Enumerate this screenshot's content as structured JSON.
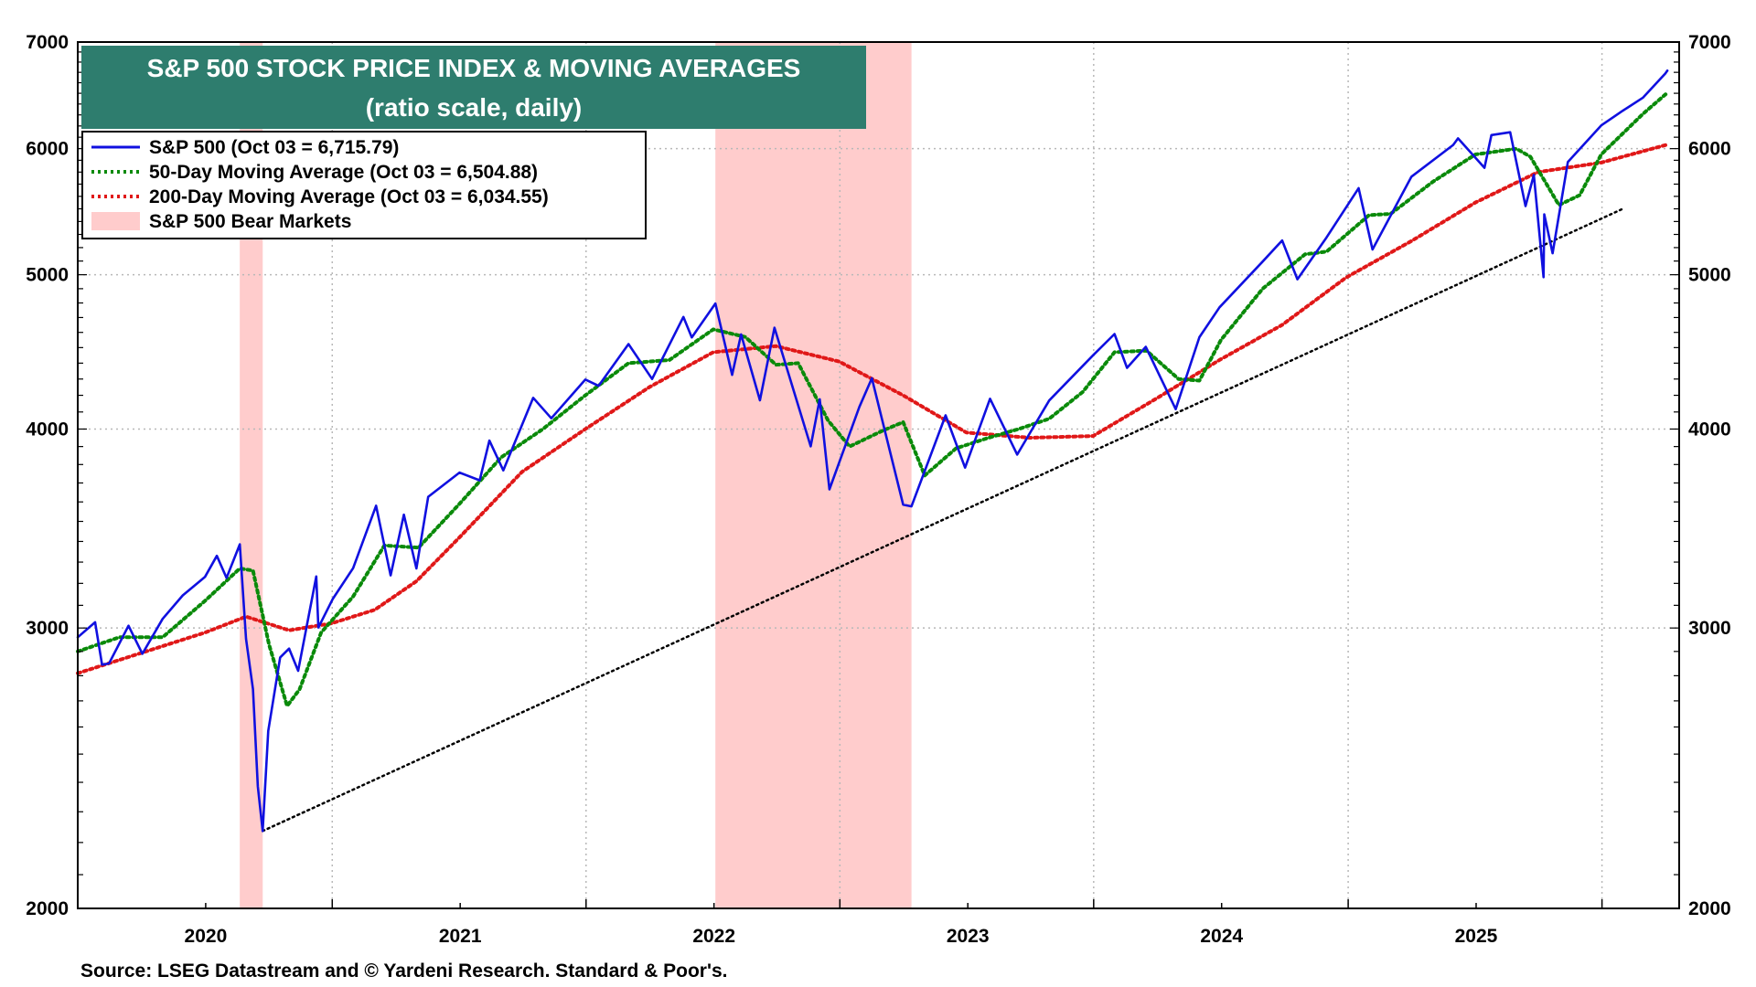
{
  "chart_data": {
    "type": "line",
    "title": "S&P 500 STOCK PRICE INDEX & MOVING AVERAGES",
    "subtitle": "(ratio scale, daily)",
    "y_scale": "log",
    "ylim": [
      2000,
      7000
    ],
    "x_range": [
      "2019-07-01",
      "2025-10-20"
    ],
    "y_ticks": [
      "2000",
      "3000",
      "4000",
      "5000",
      "6000",
      "7000"
    ],
    "y_tick_values": [
      2000,
      3000,
      4000,
      5000,
      6000,
      7000
    ],
    "x_tick_labels": [
      "2020",
      "2021",
      "2022",
      "2023",
      "2024",
      "2025"
    ],
    "x_label_positions": [
      "2020-01-01",
      "2021-01-01",
      "2022-01-01",
      "2023-01-01",
      "2024-01-01",
      "2025-01-01"
    ],
    "grid": true,
    "legend_placement": "top-left",
    "colors": {
      "sp500": "#1010e0",
      "ma50": "#0a8a0a",
      "ma200": "#e01818",
      "bear": "#ffcccc",
      "trend": "#000000",
      "title_bg": "#2e7d6e"
    },
    "series": [
      {
        "name": "S&P 500 (Oct 03 = 6,715.79)",
        "style": "solid",
        "points": [
          [
            "2019-07-01",
            2960
          ],
          [
            "2019-07-26",
            3025
          ],
          [
            "2019-08-05",
            2845
          ],
          [
            "2019-08-15",
            2850
          ],
          [
            "2019-09-12",
            3010
          ],
          [
            "2019-10-02",
            2890
          ],
          [
            "2019-10-31",
            3040
          ],
          [
            "2019-11-29",
            3145
          ],
          [
            "2019-12-31",
            3230
          ],
          [
            "2020-01-17",
            3330
          ],
          [
            "2020-01-31",
            3225
          ],
          [
            "2020-02-19",
            3386
          ],
          [
            "2020-02-28",
            2954
          ],
          [
            "2020-03-09",
            2746
          ],
          [
            "2020-03-16",
            2386
          ],
          [
            "2020-03-23",
            2237
          ],
          [
            "2020-03-31",
            2585
          ],
          [
            "2020-04-17",
            2875
          ],
          [
            "2020-04-30",
            2912
          ],
          [
            "2020-05-13",
            2820
          ],
          [
            "2020-06-08",
            3232
          ],
          [
            "2020-06-11",
            3002
          ],
          [
            "2020-07-02",
            3130
          ],
          [
            "2020-07-31",
            3271
          ],
          [
            "2020-09-02",
            3580
          ],
          [
            "2020-09-23",
            3237
          ],
          [
            "2020-10-12",
            3534
          ],
          [
            "2020-10-30",
            3270
          ],
          [
            "2020-11-16",
            3627
          ],
          [
            "2020-12-31",
            3756
          ],
          [
            "2021-01-29",
            3714
          ],
          [
            "2021-02-12",
            3934
          ],
          [
            "2021-03-04",
            3768
          ],
          [
            "2021-04-16",
            4185
          ],
          [
            "2021-05-12",
            4063
          ],
          [
            "2021-06-30",
            4297
          ],
          [
            "2021-07-19",
            4258
          ],
          [
            "2021-08-31",
            4523
          ],
          [
            "2021-10-04",
            4300
          ],
          [
            "2021-11-18",
            4704
          ],
          [
            "2021-11-30",
            4567
          ],
          [
            "2022-01-03",
            4796
          ],
          [
            "2022-01-27",
            4326
          ],
          [
            "2022-02-09",
            4587
          ],
          [
            "2022-03-08",
            4170
          ],
          [
            "2022-03-29",
            4631
          ],
          [
            "2022-05-20",
            3901
          ],
          [
            "2022-06-02",
            4176
          ],
          [
            "2022-06-16",
            3666
          ],
          [
            "2022-07-29",
            4130
          ],
          [
            "2022-08-16",
            4305
          ],
          [
            "2022-09-30",
            3586
          ],
          [
            "2022-10-12",
            3577
          ],
          [
            "2022-11-30",
            4080
          ],
          [
            "2022-12-28",
            3783
          ],
          [
            "2023-02-02",
            4179
          ],
          [
            "2023-03-13",
            3855
          ],
          [
            "2023-04-28",
            4169
          ],
          [
            "2023-06-30",
            4450
          ],
          [
            "2023-07-31",
            4589
          ],
          [
            "2023-08-18",
            4370
          ],
          [
            "2023-09-14",
            4505
          ],
          [
            "2023-10-27",
            4117
          ],
          [
            "2023-11-30",
            4568
          ],
          [
            "2023-12-29",
            4770
          ],
          [
            "2024-02-29",
            5096
          ],
          [
            "2024-03-28",
            5254
          ],
          [
            "2024-04-19",
            4967
          ],
          [
            "2024-05-31",
            5278
          ],
          [
            "2024-07-16",
            5667
          ],
          [
            "2024-08-05",
            5186
          ],
          [
            "2024-09-30",
            5762
          ],
          [
            "2024-11-29",
            6032
          ],
          [
            "2024-12-06",
            6090
          ],
          [
            "2025-01-13",
            5836
          ],
          [
            "2025-01-23",
            6119
          ],
          [
            "2025-02-19",
            6144
          ],
          [
            "2025-03-13",
            5522
          ],
          [
            "2025-03-25",
            5776
          ],
          [
            "2025-04-08",
            4982
          ],
          [
            "2025-04-09",
            5456
          ],
          [
            "2025-04-21",
            5158
          ],
          [
            "2025-05-13",
            5886
          ],
          [
            "2025-06-30",
            6205
          ],
          [
            "2025-07-31",
            6339
          ],
          [
            "2025-08-29",
            6460
          ],
          [
            "2025-09-30",
            6688
          ],
          [
            "2025-10-03",
            6716
          ]
        ]
      },
      {
        "name": "50-Day Moving Average (Oct 03 = 6,504.88)",
        "style": "dotted",
        "points": [
          [
            "2019-07-01",
            2900
          ],
          [
            "2019-08-30",
            2960
          ],
          [
            "2019-10-31",
            2960
          ],
          [
            "2019-12-31",
            3120
          ],
          [
            "2020-02-19",
            3270
          ],
          [
            "2020-03-09",
            3260
          ],
          [
            "2020-04-01",
            2930
          ],
          [
            "2020-04-27",
            2680
          ],
          [
            "2020-05-15",
            2745
          ],
          [
            "2020-06-15",
            2980
          ],
          [
            "2020-07-31",
            3140
          ],
          [
            "2020-09-14",
            3380
          ],
          [
            "2020-11-02",
            3370
          ],
          [
            "2020-12-31",
            3590
          ],
          [
            "2021-03-01",
            3840
          ],
          [
            "2021-04-30",
            4000
          ],
          [
            "2021-06-30",
            4200
          ],
          [
            "2021-08-31",
            4400
          ],
          [
            "2021-10-29",
            4420
          ],
          [
            "2021-12-31",
            4620
          ],
          [
            "2022-02-15",
            4570
          ],
          [
            "2022-03-31",
            4390
          ],
          [
            "2022-05-02",
            4400
          ],
          [
            "2022-06-14",
            4050
          ],
          [
            "2022-07-15",
            3900
          ],
          [
            "2022-08-31",
            3990
          ],
          [
            "2022-09-30",
            4040
          ],
          [
            "2022-10-31",
            3740
          ],
          [
            "2022-12-15",
            3890
          ],
          [
            "2023-01-31",
            3950
          ],
          [
            "2023-03-15",
            4000
          ],
          [
            "2023-04-28",
            4060
          ],
          [
            "2023-06-15",
            4220
          ],
          [
            "2023-07-31",
            4470
          ],
          [
            "2023-09-15",
            4480
          ],
          [
            "2023-10-31",
            4300
          ],
          [
            "2023-11-30",
            4290
          ],
          [
            "2023-12-31",
            4550
          ],
          [
            "2024-02-29",
            4900
          ],
          [
            "2024-04-30",
            5150
          ],
          [
            "2024-05-31",
            5170
          ],
          [
            "2024-07-31",
            5450
          ],
          [
            "2024-08-31",
            5460
          ],
          [
            "2024-10-31",
            5720
          ],
          [
            "2024-12-31",
            5950
          ],
          [
            "2025-02-28",
            6000
          ],
          [
            "2025-03-20",
            5930
          ],
          [
            "2025-04-30",
            5530
          ],
          [
            "2025-05-30",
            5610
          ],
          [
            "2025-06-30",
            5950
          ],
          [
            "2025-08-29",
            6310
          ],
          [
            "2025-10-03",
            6505
          ]
        ]
      },
      {
        "name": "200-Day Moving Average (Oct 03 = 6,034.55)",
        "style": "dotted",
        "points": [
          [
            "2019-07-01",
            2810
          ],
          [
            "2019-12-31",
            2980
          ],
          [
            "2020-02-28",
            3050
          ],
          [
            "2020-04-30",
            2990
          ],
          [
            "2020-06-30",
            3020
          ],
          [
            "2020-08-31",
            3080
          ],
          [
            "2020-10-30",
            3210
          ],
          [
            "2020-12-31",
            3420
          ],
          [
            "2021-03-31",
            3760
          ],
          [
            "2021-06-30",
            4000
          ],
          [
            "2021-09-30",
            4250
          ],
          [
            "2021-12-31",
            4470
          ],
          [
            "2022-03-31",
            4510
          ],
          [
            "2022-06-30",
            4410
          ],
          [
            "2022-09-30",
            4200
          ],
          [
            "2022-12-30",
            3980
          ],
          [
            "2023-03-31",
            3950
          ],
          [
            "2023-06-30",
            3960
          ],
          [
            "2023-09-29",
            4180
          ],
          [
            "2023-12-29",
            4420
          ],
          [
            "2024-03-28",
            4650
          ],
          [
            "2024-06-28",
            4980
          ],
          [
            "2024-09-30",
            5250
          ],
          [
            "2024-12-31",
            5550
          ],
          [
            "2025-03-31",
            5800
          ],
          [
            "2025-06-30",
            5880
          ],
          [
            "2025-10-03",
            6035
          ]
        ]
      },
      {
        "name": "Trend line",
        "style": "dotted",
        "points": [
          [
            "2020-03-23",
            2237
          ],
          [
            "2025-07-31",
            5500
          ]
        ]
      }
    ],
    "bands": [
      {
        "name": "S&P 500 Bear Markets",
        "from": "2020-02-19",
        "to": "2020-03-23"
      },
      {
        "name": "S&P 500 Bear Markets",
        "from": "2022-01-03",
        "to": "2022-10-12"
      }
    ],
    "legend": [
      {
        "label": "S&P 500 (Oct 03 = 6,715.79)",
        "color": "#1010e0",
        "style": "solid"
      },
      {
        "label": "50-Day Moving Average (Oct 03 = 6,504.88)",
        "color": "#0a8a0a",
        "style": "dotted"
      },
      {
        "label": "200-Day Moving Average (Oct 03 = 6,034.55)",
        "color": "#e01818",
        "style": "dotted"
      },
      {
        "label": "S&P 500 Bear Markets",
        "color": "#ffcccc",
        "style": "band"
      }
    ]
  },
  "source": "Source: LSEG Datastream and © Yardeni Research. Standard & Poor's."
}
